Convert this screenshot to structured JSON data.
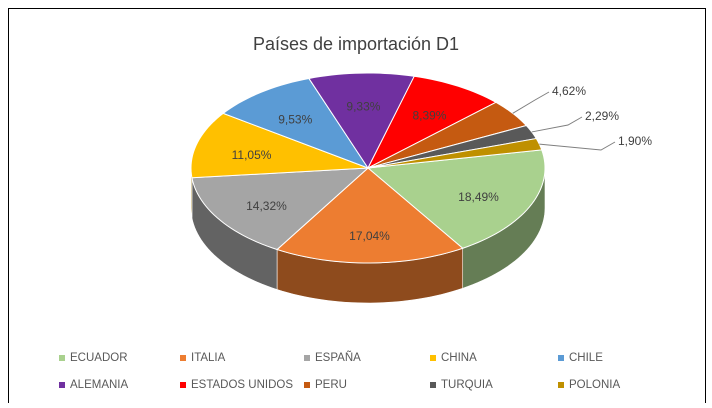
{
  "chart_data": {
    "type": "pie3d",
    "title": "Países de importación D1",
    "categories": [
      "ECUADOR",
      "ITALIA",
      "ESPAÑA",
      "CHINA",
      "CHILE",
      "ALEMANIA",
      "ESTADOS UNIDOS",
      "PERU",
      "TURQUIA",
      "POLONIA"
    ],
    "values": [
      18.49,
      17.04,
      14.32,
      11.05,
      9.53,
      9.33,
      8.39,
      4.62,
      2.29,
      1.9
    ],
    "value_labels": [
      "18,49%",
      "17,04%",
      "14,32%",
      "11,05%",
      "9,53%",
      "9,33%",
      "8,39%",
      "4,62%",
      "2,29%",
      "1,90%"
    ],
    "colors": [
      "#a9d18e",
      "#ed7d31",
      "#a5a5a5",
      "#ffc000",
      "#5b9bd5",
      "#7030a0",
      "#ff0000",
      "#c55a11",
      "#595959",
      "#bf9000"
    ],
    "legend": "bottom"
  }
}
